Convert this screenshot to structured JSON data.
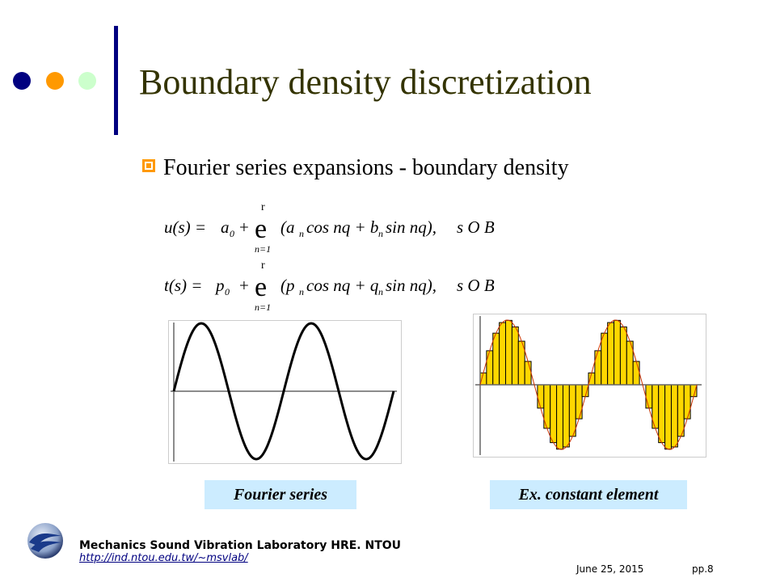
{
  "slide": {
    "title": "Boundary density discretization",
    "bullet": "Fourier series expansions - boundary density"
  },
  "equations": {
    "eq1": {
      "lhs": "u(s) =",
      "const": "a",
      "const_sub": "0",
      "plus": "+",
      "sum_top": "r",
      "sum_symbol": "e",
      "sum_bottom": "n=1",
      "term": "(a",
      "term_sub1": "n",
      "term_mid": "cos nq + b",
      "term_sub2": "n",
      "term_end": "sin nq),",
      "domain": "s O B"
    },
    "eq2": {
      "lhs": "t(s) =",
      "const": "p",
      "const_sub": "0",
      "plus": "+",
      "sum_top": "r",
      "sum_symbol": "e",
      "sum_bottom": "n=1",
      "term": "(p",
      "term_sub1": "n",
      "term_mid": "cos nq + q",
      "term_sub2": "n",
      "term_end": "sin nq),",
      "domain": "s O B"
    }
  },
  "figures": {
    "left_caption": "Fourier series",
    "right_caption": "Ex. constant element"
  },
  "footer": {
    "lab_name": "Mechanics Sound Vibration Laboratory HRE. NTOU",
    "lab_url": "http://ind.ntou.edu.tw/~msvlab/",
    "date": "June 25, 2015",
    "page": "pp.8"
  },
  "colors": {
    "title": "#333300",
    "accent_bar": "#000080",
    "dot_1": "#000080",
    "dot_2": "#FF9900",
    "dot_3": "#CCFFCC",
    "bullet_icon": "#FF9900",
    "caption_bg": "#CCECFF",
    "step_fill": "#FFD700",
    "curve_red": "#CC3300"
  },
  "icons": {
    "bullet": "square-bullet-icon",
    "logo": "ntou-wave-logo-icon"
  }
}
